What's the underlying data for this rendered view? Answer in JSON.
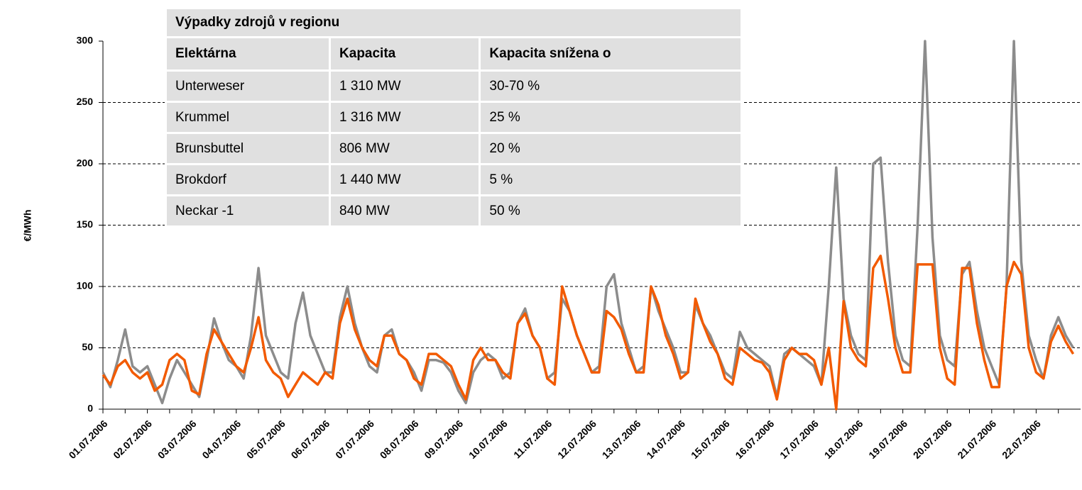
{
  "chart_data": {
    "type": "line",
    "y_label": "€/MWh",
    "categories": [
      "01.07.2006",
      null,
      null,
      null,
      null,
      null,
      "02.07.2006",
      null,
      null,
      null,
      null,
      null,
      "03.07.2006",
      null,
      null,
      null,
      null,
      null,
      "04.07.2006",
      null,
      null,
      null,
      null,
      null,
      "05.07.2006",
      null,
      null,
      null,
      null,
      null,
      "06.07.2006",
      null,
      null,
      null,
      null,
      null,
      "07.07.2006",
      null,
      null,
      null,
      null,
      null,
      "08.07.2006",
      null,
      null,
      null,
      null,
      null,
      "09.07.2006",
      null,
      null,
      null,
      null,
      null,
      "10.07.2006",
      null,
      null,
      null,
      null,
      null,
      "11.07.2006",
      null,
      null,
      null,
      null,
      null,
      "12.07.2006",
      null,
      null,
      null,
      null,
      null,
      "13.07.2006",
      null,
      null,
      null,
      null,
      null,
      "14.07.2006",
      null,
      null,
      null,
      null,
      null,
      "15.07.2006",
      null,
      null,
      null,
      null,
      null,
      "16.07.2006",
      null,
      null,
      null,
      null,
      null,
      "17.07.2006",
      null,
      null,
      null,
      null,
      null,
      "18.07.2006",
      null,
      null,
      null,
      null,
      null,
      "19.07.2006",
      null,
      null,
      null,
      null,
      null,
      "20.07.2006",
      null,
      null,
      null,
      null,
      null,
      "21.07.2006",
      null,
      null,
      null,
      null,
      null,
      "22.07.2006",
      null,
      null,
      null,
      null,
      null
    ],
    "series": [
      {
        "color": "#8c8c8c",
        "values": [
          30,
          18,
          40,
          65,
          35,
          30,
          35,
          20,
          5,
          25,
          40,
          30,
          20,
          10,
          40,
          74,
          55,
          40,
          35,
          25,
          60,
          115,
          60,
          45,
          30,
          25,
          70,
          95,
          60,
          45,
          30,
          30,
          75,
          100,
          70,
          50,
          35,
          30,
          60,
          65,
          45,
          40,
          30,
          15,
          40,
          40,
          38,
          30,
          15,
          5,
          30,
          40,
          45,
          40,
          25,
          30,
          70,
          82,
          60,
          50,
          25,
          30,
          90,
          80,
          60,
          45,
          30,
          35,
          100,
          110,
          70,
          50,
          30,
          35,
          100,
          80,
          65,
          50,
          30,
          30,
          85,
          70,
          60,
          45,
          30,
          25,
          63,
          50,
          45,
          40,
          35,
          10,
          45,
          50,
          45,
          40,
          35,
          20,
          100,
          197,
          90,
          60,
          45,
          40,
          200,
          205,
          120,
          60,
          40,
          35,
          150,
          300,
          140,
          60,
          40,
          35,
          110,
          120,
          80,
          50,
          35,
          20,
          100,
          300,
          120,
          60,
          40,
          25,
          60,
          75,
          60,
          50
        ]
      },
      {
        "color": "#f25a00",
        "values": [
          28,
          20,
          35,
          40,
          30,
          25,
          30,
          15,
          20,
          40,
          45,
          40,
          15,
          12,
          45,
          65,
          55,
          45,
          35,
          30,
          50,
          75,
          40,
          30,
          25,
          10,
          20,
          30,
          25,
          20,
          30,
          25,
          70,
          90,
          65,
          50,
          40,
          35,
          60,
          60,
          45,
          40,
          25,
          20,
          45,
          45,
          40,
          35,
          20,
          8,
          40,
          50,
          40,
          40,
          30,
          25,
          70,
          78,
          60,
          50,
          25,
          20,
          100,
          80,
          60,
          45,
          30,
          30,
          80,
          75,
          65,
          45,
          30,
          30,
          100,
          85,
          60,
          45,
          25,
          30,
          90,
          70,
          55,
          45,
          25,
          20,
          50,
          45,
          40,
          38,
          30,
          8,
          40,
          50,
          45,
          45,
          40,
          20,
          50,
          0,
          88,
          50,
          40,
          35,
          115,
          125,
          90,
          50,
          30,
          30,
          118,
          118,
          118,
          50,
          25,
          20,
          115,
          115,
          70,
          40,
          18,
          18,
          100,
          120,
          110,
          50,
          30,
          25,
          55,
          68,
          55,
          45
        ]
      }
    ],
    "ylim": [
      0,
      300
    ],
    "yticks": [
      0,
      50,
      100,
      150,
      200,
      250,
      300
    ],
    "grid": true
  },
  "table": {
    "title": "Výpadky zdrojů v regionu",
    "header": [
      "Elektárna",
      "Kapacita",
      "Kapacita snížena o"
    ],
    "rows": [
      [
        "Unterweser",
        "1 310 MW",
        "30-70 %"
      ],
      [
        "Krummel",
        "1 316 MW",
        "25 %"
      ],
      [
        "Brunsbuttel",
        "806 MW",
        "20 %"
      ],
      [
        "Brokdorf",
        "1 440 MW",
        "5 %"
      ],
      [
        "Neckar -1",
        "840 MW",
        "50 %"
      ]
    ]
  }
}
